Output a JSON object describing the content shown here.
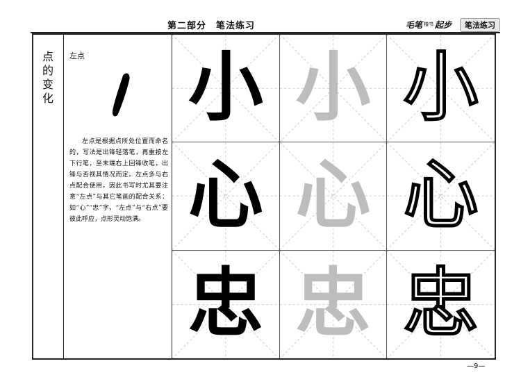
{
  "header": {
    "title": "第二部分　笔法练习",
    "brand": [
      "毛笔",
      "楷书",
      "起步"
    ],
    "section_tag": "笔法练习"
  },
  "sidebar": {
    "title": "点的变化"
  },
  "lesson": {
    "stroke_label": "左点",
    "explanation": "左点是根据点所处位置而命名的，写法是出锋轻落笔，再重按左下行笔，至末端右上回锋收笔，出锋与否视其情况而定。左点多与右点配合使用，因此书写时尤其要注意“左点”与其它笔画的配合关系：如“心”“忠”字，“左点”与“右点”要彼此呼应，点形灵动饱满。"
  },
  "practice_rows": [
    {
      "solid": "小",
      "gray": "小",
      "outline": "小"
    },
    {
      "solid": "心",
      "gray": "心",
      "outline": "心"
    },
    {
      "solid": "忠",
      "gray": "忠",
      "outline": "忠"
    }
  ],
  "colors": {
    "guide_line": "#c8c8c8",
    "trace_gray": "#bdbdbd"
  },
  "page_number": "—9—"
}
